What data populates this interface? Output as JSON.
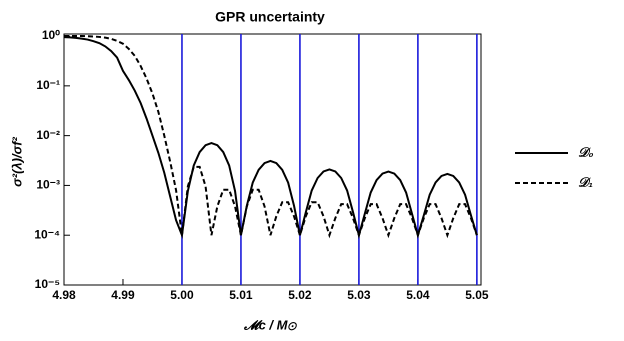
{
  "chart_data": {
    "type": "line",
    "title": "GPR uncertainty",
    "x_label": "𝓜c / M⊙",
    "y_label": "σ²(λ)/σf²",
    "x": [
      4.98,
      4.981,
      4.982,
      4.983,
      4.984,
      4.985,
      4.986,
      4.987,
      4.988,
      4.989,
      4.99,
      4.991,
      4.992,
      4.993,
      4.994,
      4.995,
      4.996,
      4.997,
      4.998,
      4.999,
      5.0,
      5.001,
      5.002,
      5.003,
      5.004,
      5.005,
      5.006,
      5.007,
      5.008,
      5.009,
      5.01,
      5.011,
      5.012,
      5.013,
      5.014,
      5.015,
      5.016,
      5.017,
      5.018,
      5.019,
      5.02,
      5.021,
      5.022,
      5.023,
      5.024,
      5.025,
      5.026,
      5.027,
      5.028,
      5.029,
      5.03,
      5.031,
      5.032,
      5.033,
      5.034,
      5.035,
      5.036,
      5.037,
      5.038,
      5.039,
      5.04,
      5.041,
      5.042,
      5.043,
      5.044,
      5.045,
      5.046,
      5.047,
      5.048,
      5.049,
      5.05
    ],
    "series": [
      {
        "name": "𝒟₀",
        "color": "#000000",
        "dash": false,
        "values": [
          0.95,
          0.94,
          0.92,
          0.89,
          0.85,
          0.79,
          0.72,
          0.62,
          0.5,
          0.37,
          0.2,
          0.13,
          0.08,
          0.045,
          0.022,
          0.01,
          0.0045,
          0.0018,
          0.0006,
          0.0002,
          0.0001,
          0.00077,
          0.00252,
          0.00468,
          0.00643,
          0.0071,
          0.00643,
          0.00468,
          0.00252,
          0.00077,
          0.0001,
          0.00039,
          0.00114,
          0.00206,
          0.00281,
          0.0031,
          0.00281,
          0.00206,
          0.00114,
          0.00039,
          0.0001,
          0.00029,
          0.00079,
          0.00141,
          0.00191,
          0.0021,
          0.00191,
          0.00141,
          0.00079,
          0.00029,
          0.0001,
          0.00027,
          0.00072,
          0.00128,
          0.00173,
          0.0019,
          0.00173,
          0.00128,
          0.00072,
          0.00027,
          0.0001,
          0.00025,
          0.00065,
          0.00115,
          0.00155,
          0.0017,
          0.00155,
          0.00115,
          0.00065,
          0.00025,
          0.0001
        ]
      },
      {
        "name": "𝒟₁",
        "color": "#000000",
        "dash": true,
        "values": [
          1,
          1,
          1,
          1,
          0.99,
          0.98,
          0.96,
          0.93,
          0.88,
          0.8,
          0.7,
          0.55,
          0.4,
          0.25,
          0.14,
          0.07,
          0.03,
          0.01,
          0.003,
          0.0008,
          0.0001,
          0.00096,
          0.00236,
          0.00236,
          0.00096,
          0.0001,
          0.00038,
          0.00082,
          0.00082,
          0.00038,
          0.0001,
          0.00038,
          0.00082,
          0.00082,
          0.00038,
          0.0001,
          0.00024,
          0.00046,
          0.00046,
          0.00024,
          0.0001,
          0.00024,
          0.00046,
          0.00046,
          0.00024,
          0.0001,
          0.00022,
          0.00042,
          0.00042,
          0.00022,
          0.0001,
          0.00022,
          0.00042,
          0.00042,
          0.00022,
          0.0001,
          0.00022,
          0.00042,
          0.00042,
          0.00022,
          0.0001,
          0.00022,
          0.00042,
          0.00042,
          0.00022,
          0.0001,
          0.00022,
          0.00042,
          0.00042,
          0.00022,
          0.0001
        ]
      }
    ],
    "vlines": [
      5.0,
      5.01,
      5.02,
      5.03,
      5.04,
      5.05
    ],
    "vline_color": "#1a1adb",
    "xlim": [
      4.98,
      5.0507
    ],
    "ylim": [
      1e-05,
      1.1
    ],
    "log_y": true,
    "xticks": [
      4.98,
      4.99,
      {
        "value": 5.0,
        "label": "5.00"
      },
      5.01,
      5.02,
      5.03,
      5.04,
      5.05
    ],
    "yticks": [
      {
        "value": 1,
        "label": "10⁰"
      },
      {
        "value": 0.1,
        "label": "10⁻¹"
      },
      {
        "value": 0.01,
        "label": "10⁻²"
      },
      {
        "value": 0.001,
        "label": "10⁻³"
      },
      {
        "value": 0.0001,
        "label": "10⁻⁴"
      },
      {
        "value": 1e-05,
        "label": "10⁻⁵"
      }
    ]
  }
}
